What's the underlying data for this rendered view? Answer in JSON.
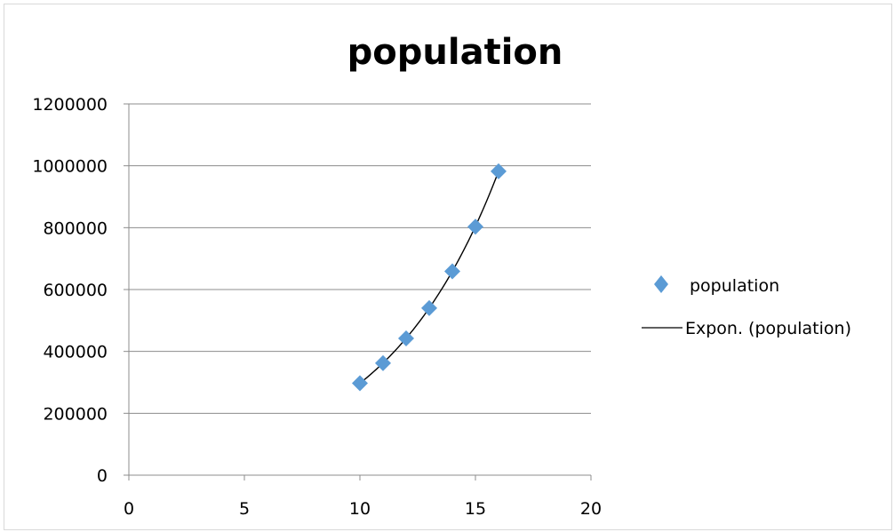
{
  "chart_data": {
    "type": "scatter",
    "title": "population",
    "xlabel": "",
    "ylabel": "",
    "xlim": [
      0,
      20
    ],
    "ylim": [
      0,
      1200000
    ],
    "x_ticks": [
      "0",
      "5",
      "10",
      "15",
      "20"
    ],
    "y_ticks": [
      "0",
      "200000",
      "400000",
      "600000",
      "800000",
      "1000000",
      "1200000"
    ],
    "grid": "horizontal",
    "legend_position": "right",
    "series": [
      {
        "name": "population",
        "marker": "diamond",
        "color": "#5b9bd5",
        "points": [
          {
            "x": 10,
            "y": 297000
          },
          {
            "x": 11,
            "y": 362000
          },
          {
            "x": 12,
            "y": 442000
          },
          {
            "x": 13,
            "y": 540000
          },
          {
            "x": 14,
            "y": 659000
          },
          {
            "x": 15,
            "y": 803000
          },
          {
            "x": 16,
            "y": 982000
          }
        ]
      }
    ],
    "trendline": {
      "name": "Expon. (population)",
      "type": "exponential",
      "color": "#000000",
      "x_range": [
        10,
        16
      ],
      "y_start": 297000,
      "y_end": 982000
    }
  }
}
